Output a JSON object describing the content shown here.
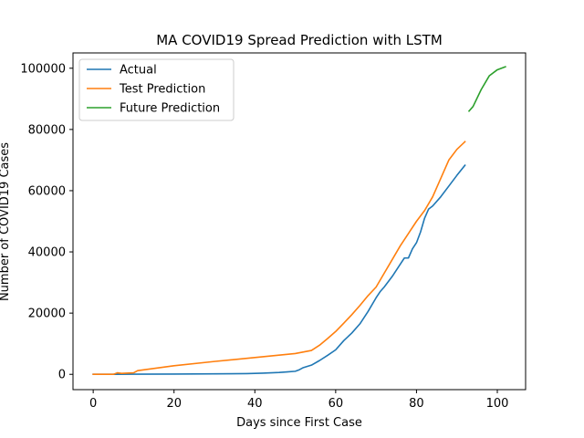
{
  "chart_data": {
    "type": "line",
    "title": "MA COVID19 Spread Prediction with LSTM",
    "xlabel": "Days since First Case",
    "ylabel": "Number of COVID19 Cases",
    "xlim": [
      -5,
      107
    ],
    "ylim": [
      -5000,
      105000
    ],
    "xticks": [
      0,
      20,
      40,
      60,
      80,
      100
    ],
    "yticks": [
      0,
      20000,
      40000,
      60000,
      80000,
      100000
    ],
    "grid": false,
    "legend_position": "top-left",
    "series": [
      {
        "name": "Actual",
        "color": "#1f77b4",
        "x": [
          0,
          5,
          10,
          20,
          30,
          38,
          42,
          46,
          48,
          50,
          51,
          52,
          54,
          56,
          58,
          60,
          62,
          64,
          66,
          68,
          70,
          71,
          72,
          74,
          76,
          77,
          78,
          79,
          80,
          81,
          82,
          83,
          84,
          86,
          88,
          90,
          92
        ],
        "y": [
          0,
          0,
          50,
          100,
          150,
          250,
          400,
          600,
          800,
          1000,
          1500,
          2200,
          3000,
          4500,
          6200,
          8000,
          11000,
          13500,
          16500,
          20500,
          25000,
          27000,
          28500,
          32000,
          36000,
          38000,
          38000,
          41000,
          43000,
          46500,
          51000,
          54000,
          55000,
          58000,
          61500,
          65000,
          68300
        ]
      },
      {
        "name": "Test Prediction",
        "color": "#ff7f0e",
        "x": [
          0,
          5,
          6,
          7,
          10,
          11,
          20,
          30,
          40,
          50,
          54,
          56,
          58,
          60,
          62,
          64,
          66,
          68,
          70,
          72,
          74,
          76,
          78,
          80,
          82,
          84,
          86,
          88,
          90,
          92
        ],
        "y": [
          0,
          0,
          500,
          300,
          500,
          1200,
          2800,
          4200,
          5500,
          6800,
          7800,
          9500,
          11700,
          14000,
          16700,
          19500,
          22500,
          25700,
          28500,
          33000,
          37500,
          42000,
          46000,
          50000,
          53500,
          58000,
          64000,
          70000,
          73500,
          76000
        ]
      },
      {
        "name": "Future Prediction",
        "color": "#2ca02c",
        "x": [
          93,
          94,
          96,
          98,
          100,
          102
        ],
        "y": [
          86000,
          87500,
          93000,
          97500,
          99500,
          100500
        ]
      }
    ]
  }
}
